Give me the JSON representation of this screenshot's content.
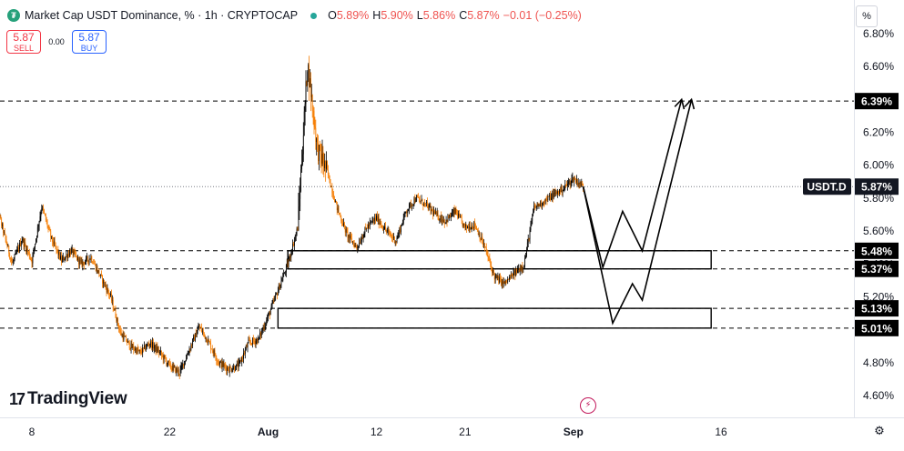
{
  "legend": {
    "icon": "tether-icon",
    "icon_glyph": "₮",
    "title": "Market Cap USDT Dominance, % · 1h · CRYPTOCAP",
    "o_key": "O",
    "o_val": "5.89%",
    "h_key": "H",
    "h_val": "5.90%",
    "l_key": "L",
    "l_val": "5.86%",
    "c_key": "C",
    "c_val": "5.87%",
    "change": "−0.01 (−0.25%)"
  },
  "trade": {
    "sell_price": "5.87",
    "sell_label": "SELL",
    "spread": "0.00",
    "buy_price": "5.87",
    "buy_label": "BUY"
  },
  "scale_mode": "%",
  "logo_text": "TradingView",
  "colors": {
    "up": "#000000",
    "down": "#f57c00",
    "last_price_bg": "#131722",
    "level_bg": "#000000",
    "sell": "#f23645",
    "buy": "#2962ff",
    "accent": "#26a69a"
  },
  "chart_data": {
    "type": "candlestick",
    "y_axis_ticks": [
      "6.80%",
      "6.60%",
      "6.40%",
      "6.20%",
      "6.00%",
      "5.80%",
      "5.60%",
      "5.40%",
      "5.20%",
      "5.00%",
      "4.80%",
      "4.60%"
    ],
    "y_axis_tick_values": [
      6.8,
      6.6,
      6.4,
      6.2,
      6.0,
      5.8,
      5.6,
      5.4,
      5.2,
      5.0,
      4.8,
      4.6
    ],
    "ylim": [
      4.55,
      6.86
    ],
    "x_axis_ticks": [
      "8",
      "22",
      "Aug",
      "12",
      "21",
      "Sep",
      "16"
    ],
    "x_axis_tick_dates": [
      "2024-07-08",
      "2024-07-22",
      "2024-08-01",
      "2024-08-12",
      "2024-08-21",
      "2024-09-01",
      "2024-09-16"
    ],
    "xlim": [
      "2024-07-04",
      "2024-09-30"
    ],
    "series_outline": [
      [
        "2024-07-04",
        5.86
      ],
      [
        "2024-07-05",
        5.62
      ],
      [
        "2024-07-06",
        5.4
      ],
      [
        "2024-07-07",
        5.55
      ],
      [
        "2024-07-08",
        5.42
      ],
      [
        "2024-07-09",
        5.75
      ],
      [
        "2024-07-10",
        5.55
      ],
      [
        "2024-07-11",
        5.42
      ],
      [
        "2024-07-12",
        5.48
      ],
      [
        "2024-07-13",
        5.4
      ],
      [
        "2024-07-14",
        5.44
      ],
      [
        "2024-07-15",
        5.32
      ],
      [
        "2024-07-16",
        5.2
      ],
      [
        "2024-07-17",
        4.98
      ],
      [
        "2024-07-18",
        4.9
      ],
      [
        "2024-07-19",
        4.86
      ],
      [
        "2024-07-20",
        4.92
      ],
      [
        "2024-07-21",
        4.86
      ],
      [
        "2024-07-22",
        4.78
      ],
      [
        "2024-07-23",
        4.74
      ],
      [
        "2024-07-24",
        4.88
      ],
      [
        "2024-07-25",
        5.02
      ],
      [
        "2024-07-26",
        4.92
      ],
      [
        "2024-07-27",
        4.8
      ],
      [
        "2024-07-28",
        4.76
      ],
      [
        "2024-07-29",
        4.78
      ],
      [
        "2024-07-30",
        4.92
      ],
      [
        "2024-07-31",
        4.94
      ],
      [
        "2024-08-01",
        5.08
      ],
      [
        "2024-08-02",
        5.24
      ],
      [
        "2024-08-03",
        5.4
      ],
      [
        "2024-08-04",
        5.62
      ],
      [
        "2024-08-05",
        6.62
      ],
      [
        "2024-08-06",
        6.1
      ],
      [
        "2024-08-07",
        5.96
      ],
      [
        "2024-08-08",
        5.74
      ],
      [
        "2024-08-09",
        5.58
      ],
      [
        "2024-08-10",
        5.5
      ],
      [
        "2024-08-11",
        5.62
      ],
      [
        "2024-08-12",
        5.68
      ],
      [
        "2024-08-13",
        5.6
      ],
      [
        "2024-08-14",
        5.54
      ],
      [
        "2024-08-15",
        5.72
      ],
      [
        "2024-08-16",
        5.8
      ],
      [
        "2024-08-17",
        5.76
      ],
      [
        "2024-08-18",
        5.7
      ],
      [
        "2024-08-19",
        5.66
      ],
      [
        "2024-08-20",
        5.72
      ],
      [
        "2024-08-21",
        5.62
      ],
      [
        "2024-08-22",
        5.64
      ],
      [
        "2024-08-23",
        5.5
      ],
      [
        "2024-08-24",
        5.32
      ],
      [
        "2024-08-25",
        5.28
      ],
      [
        "2024-08-26",
        5.34
      ],
      [
        "2024-08-27",
        5.4
      ],
      [
        "2024-08-28",
        5.74
      ],
      [
        "2024-08-29",
        5.78
      ],
      [
        "2024-08-30",
        5.82
      ],
      [
        "2024-08-31",
        5.86
      ],
      [
        "2024-09-01",
        5.92
      ],
      [
        "2024-09-02",
        5.87
      ]
    ],
    "last_price_label": "USDT.D",
    "last_price": 5.87,
    "level_labels": [
      "6.39%",
      "5.48%",
      "5.37%",
      "5.13%",
      "5.01%"
    ],
    "levels": [
      6.39,
      5.48,
      5.37,
      5.13,
      5.01
    ],
    "zones": [
      {
        "from": 5.37,
        "to": 5.48,
        "start": "2024-08-03",
        "end": "2024-09-15"
      },
      {
        "from": 5.01,
        "to": 5.13,
        "start": "2024-08-02",
        "end": "2024-09-15"
      }
    ],
    "projection_paths": [
      [
        [
          "2024-09-02",
          5.87
        ],
        [
          "2024-09-04",
          5.38
        ],
        [
          "2024-09-06",
          5.72
        ],
        [
          "2024-09-08",
          5.48
        ],
        [
          "2024-09-12",
          6.4
        ]
      ],
      [
        [
          "2024-09-02",
          5.87
        ],
        [
          "2024-09-05",
          5.04
        ],
        [
          "2024-09-07",
          5.28
        ],
        [
          "2024-09-08",
          5.18
        ],
        [
          "2024-09-13",
          6.4
        ]
      ]
    ]
  }
}
